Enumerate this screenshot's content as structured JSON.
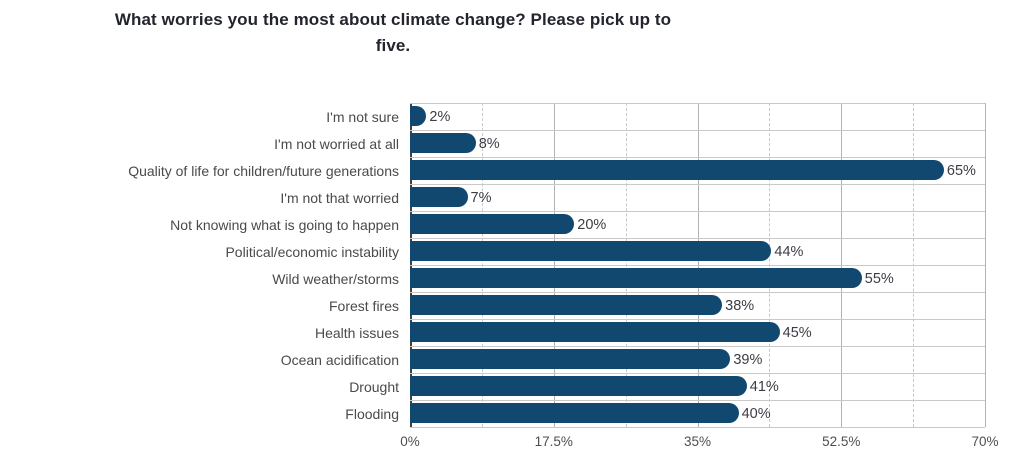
{
  "title": {
    "text": "What worries you the most about climate change? Please pick up to five."
  },
  "chart_data": {
    "type": "bar",
    "orientation": "horizontal",
    "title": "What worries you the most about climate change? Please pick up to five.",
    "categories": [
      "I'm not sure",
      "I'm not worried at all",
      "Quality of life for children/future generations",
      "I'm not that worried",
      "Not knowing what is going to happen",
      "Political/economic instability",
      "Wild weather/storms",
      "Forest fires",
      "Health issues",
      "Ocean acidification",
      "Drought",
      "Flooding"
    ],
    "values": [
      2,
      8,
      65,
      7,
      20,
      44,
      55,
      38,
      45,
      39,
      41,
      40
    ],
    "value_labels": [
      "2%",
      "8%",
      "65%",
      "7%",
      "20%",
      "44%",
      "55%",
      "38%",
      "45%",
      "39%",
      "41%",
      "40%"
    ],
    "xlabel": "",
    "ylabel": "",
    "xlim": [
      0,
      70
    ],
    "x_ticks": [
      {
        "label": "0%",
        "value": 0
      },
      {
        "label": "17.5%",
        "value": 17.5
      },
      {
        "label": "35%",
        "value": 35
      },
      {
        "label": "52.5%",
        "value": 52.5
      },
      {
        "label": "70%",
        "value": 70
      }
    ],
    "x_minor_ticks": [
      8.75,
      26.25,
      43.75,
      61.25
    ],
    "grid": "on",
    "legend": "none",
    "colors": {
      "bar_fill": "#114870",
      "title_text": "#23252e",
      "category_text": "#4a4a4a",
      "value_text": "#3c3c44",
      "tick_text": "#4f4f4f",
      "grid_major": "#b3b3b3",
      "grid_minor": "#c8c8c8",
      "row_line": "#c9c9c9",
      "axis_line": "#414141",
      "background": "#ffffff"
    }
  }
}
